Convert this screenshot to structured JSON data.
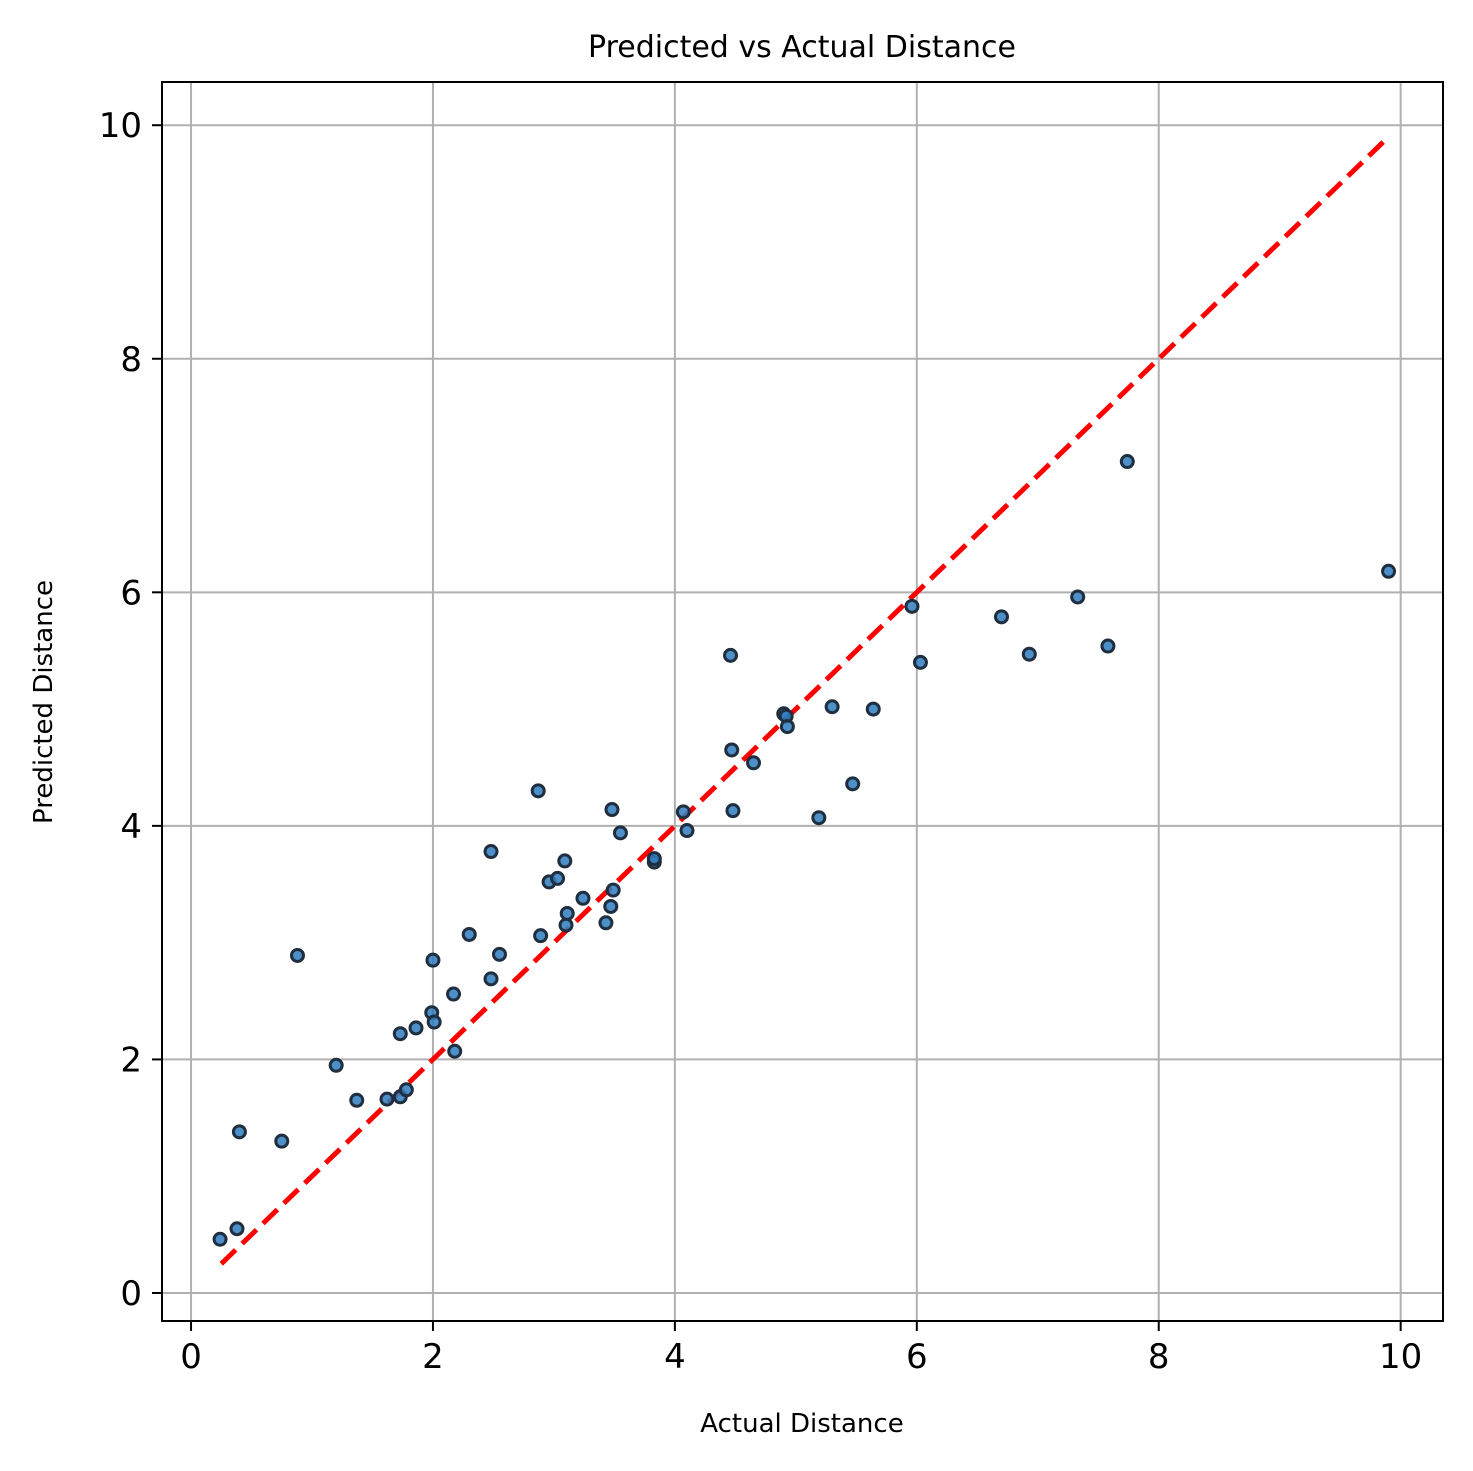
{
  "chart_data": {
    "type": "scatter",
    "title": "Predicted vs Actual Distance",
    "xlabel": "Actual Distance",
    "ylabel": "Predicted Distance",
    "xlim": [
      -0.24,
      10.35
    ],
    "ylim": [
      -0.24,
      10.37
    ],
    "xticks": [
      0,
      2,
      4,
      6,
      8,
      10
    ],
    "yticks": [
      0,
      2,
      4,
      6,
      8,
      10
    ],
    "grid": true,
    "colors": {
      "points": "#2e7dbf",
      "point_edge": "#1f2f3f",
      "reference_line": "#ff0000",
      "grid": "#b0b0b0"
    },
    "reference_line": {
      "style": "dashed",
      "from": [
        0.25,
        0.25
      ],
      "to": [
        9.9,
        9.9
      ]
    },
    "points": [
      {
        "x": 0.24,
        "y": 0.46
      },
      {
        "x": 0.38,
        "y": 0.55
      },
      {
        "x": 0.4,
        "y": 1.38
      },
      {
        "x": 0.75,
        "y": 1.3
      },
      {
        "x": 0.88,
        "y": 2.89
      },
      {
        "x": 1.2,
        "y": 1.95
      },
      {
        "x": 1.37,
        "y": 1.65
      },
      {
        "x": 1.62,
        "y": 1.66
      },
      {
        "x": 1.73,
        "y": 1.68
      },
      {
        "x": 1.78,
        "y": 1.74
      },
      {
        "x": 1.73,
        "y": 2.22
      },
      {
        "x": 1.86,
        "y": 2.27
      },
      {
        "x": 1.99,
        "y": 2.4
      },
      {
        "x": 2.01,
        "y": 2.32
      },
      {
        "x": 2.0,
        "y": 2.85
      },
      {
        "x": 2.17,
        "y": 2.56
      },
      {
        "x": 2.18,
        "y": 2.07
      },
      {
        "x": 2.3,
        "y": 3.07
      },
      {
        "x": 2.48,
        "y": 2.69
      },
      {
        "x": 2.48,
        "y": 3.78
      },
      {
        "x": 2.55,
        "y": 2.9
      },
      {
        "x": 2.87,
        "y": 4.3
      },
      {
        "x": 2.89,
        "y": 3.06
      },
      {
        "x": 2.96,
        "y": 3.52
      },
      {
        "x": 3.03,
        "y": 3.55
      },
      {
        "x": 3.09,
        "y": 3.7
      },
      {
        "x": 3.1,
        "y": 3.15
      },
      {
        "x": 3.11,
        "y": 3.25
      },
      {
        "x": 3.24,
        "y": 3.38
      },
      {
        "x": 3.43,
        "y": 3.17
      },
      {
        "x": 3.47,
        "y": 3.31
      },
      {
        "x": 3.49,
        "y": 3.45
      },
      {
        "x": 3.48,
        "y": 4.14
      },
      {
        "x": 3.55,
        "y": 3.94
      },
      {
        "x": 3.83,
        "y": 3.69
      },
      {
        "x": 3.83,
        "y": 3.72
      },
      {
        "x": 4.07,
        "y": 4.12
      },
      {
        "x": 4.1,
        "y": 3.96
      },
      {
        "x": 4.46,
        "y": 5.46
      },
      {
        "x": 4.47,
        "y": 4.65
      },
      {
        "x": 4.48,
        "y": 4.13
      },
      {
        "x": 4.65,
        "y": 4.54
      },
      {
        "x": 4.9,
        "y": 4.96
      },
      {
        "x": 4.92,
        "y": 4.94
      },
      {
        "x": 4.93,
        "y": 4.85
      },
      {
        "x": 5.19,
        "y": 4.07
      },
      {
        "x": 5.3,
        "y": 5.02
      },
      {
        "x": 5.47,
        "y": 4.36
      },
      {
        "x": 5.64,
        "y": 5.0
      },
      {
        "x": 5.96,
        "y": 5.88
      },
      {
        "x": 6.03,
        "y": 5.4
      },
      {
        "x": 6.7,
        "y": 5.79
      },
      {
        "x": 6.93,
        "y": 5.47
      },
      {
        "x": 7.33,
        "y": 5.96
      },
      {
        "x": 7.58,
        "y": 5.54
      },
      {
        "x": 7.74,
        "y": 7.12
      },
      {
        "x": 9.9,
        "y": 6.18
      }
    ]
  }
}
